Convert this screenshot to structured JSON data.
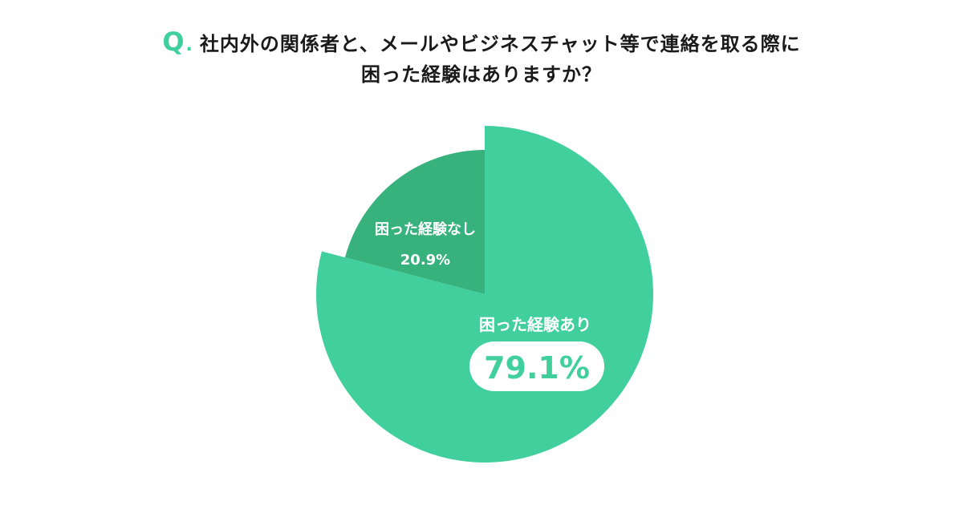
{
  "question": {
    "mark": "Q",
    "line1": "社内外の関係者と、メールやビジネスチャット等で連絡を取る際に",
    "line2": "困った経験はありますか？"
  },
  "chart_data": {
    "type": "pie",
    "title": "社内外の関係者と、メールやビジネスチャット等で連絡を取る際に困った経験はありますか？",
    "slices": [
      {
        "label": "困った経験あり",
        "value": 79.1,
        "display": "79.1%",
        "color": "#42cf9e"
      },
      {
        "label": "困った経験なし",
        "value": 20.9,
        "display": "20.9%",
        "color": "#37b27d"
      }
    ],
    "legend": "none"
  },
  "colors": {
    "accent": "#3fcf9c",
    "slice_major": "#42cf9e",
    "slice_minor": "#37b27d",
    "badge_bg": "#ffffff",
    "title_text": "#1a1a1a"
  }
}
